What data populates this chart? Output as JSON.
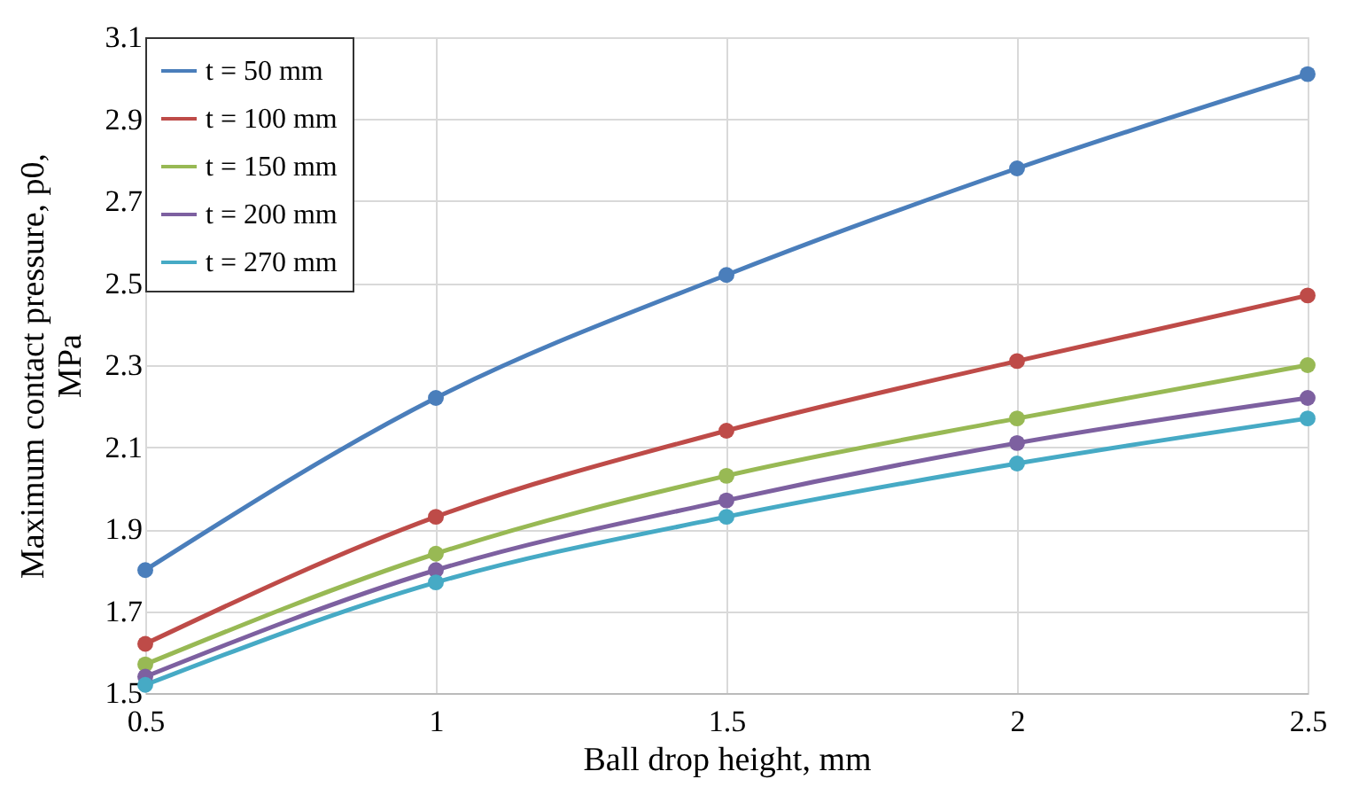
{
  "chart_data": {
    "type": "line",
    "xlabel": "Ball drop height, mm",
    "ylabel": "Maximum contact pressure, p0, MPa",
    "x": [
      0.5,
      1,
      1.5,
      2,
      2.5
    ],
    "series": [
      {
        "name": "t = 50 mm",
        "color": "#4a7ebb",
        "values": [
          1.8,
          2.22,
          2.52,
          2.78,
          3.01
        ]
      },
      {
        "name": "t = 100 mm",
        "color": "#be4b48",
        "values": [
          1.62,
          1.93,
          2.14,
          2.31,
          2.47
        ]
      },
      {
        "name": "t = 150 mm",
        "color": "#98b954",
        "values": [
          1.57,
          1.84,
          2.03,
          2.17,
          2.3
        ]
      },
      {
        "name": "t = 200 mm",
        "color": "#7d60a0",
        "values": [
          1.54,
          1.8,
          1.97,
          2.11,
          2.22
        ]
      },
      {
        "name": "t = 270 mm",
        "color": "#46aac5",
        "values": [
          1.52,
          1.77,
          1.93,
          2.06,
          2.17
        ]
      }
    ],
    "xlim": [
      0.5,
      2.5
    ],
    "xticks": [
      0.5,
      1,
      1.5,
      2,
      2.5
    ],
    "ylim": [
      1.5,
      3.1
    ],
    "yticks": [
      1.5,
      1.7,
      1.9,
      2.1,
      2.3,
      2.5,
      2.7,
      2.9,
      3.1
    ],
    "grid": true,
    "legend": "top left",
    "marker": "circle",
    "line_style": "solid"
  }
}
